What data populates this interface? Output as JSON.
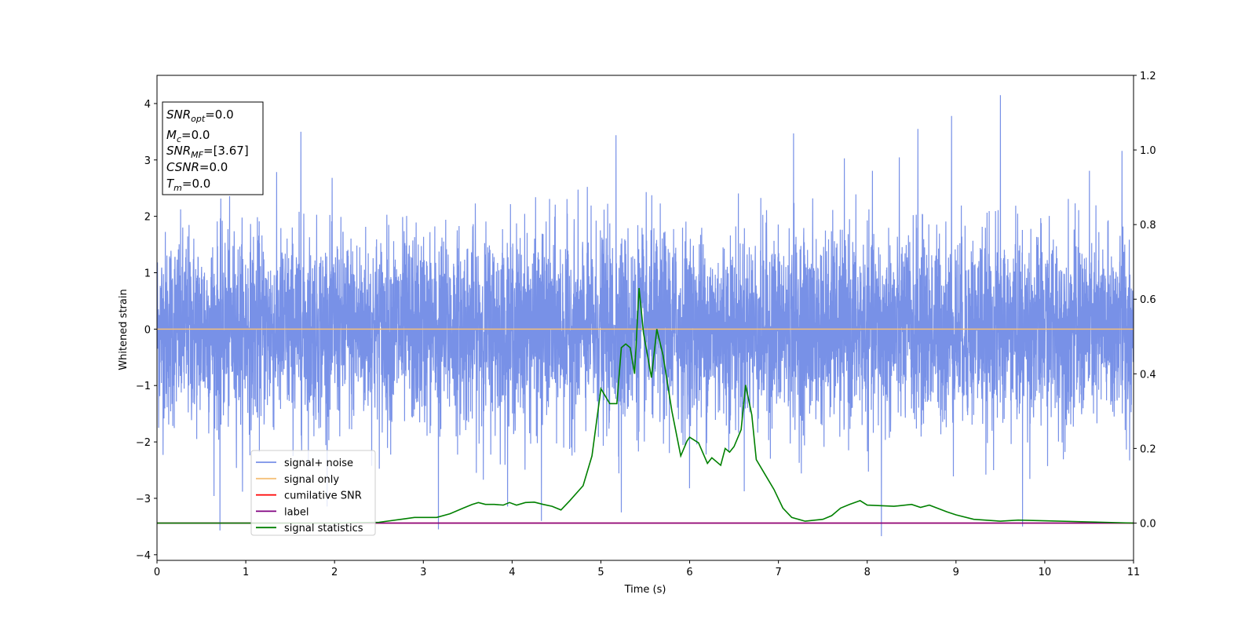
{
  "chart_data": {
    "type": "line",
    "xlabel": "Time (s)",
    "ylabel_left": "Whitened strain",
    "ylabel_right": "",
    "xlim": [
      0,
      11
    ],
    "ylim_left": [
      -4.1,
      4.5
    ],
    "ylim_right": [
      -0.1,
      1.2
    ],
    "x_ticks": [
      0,
      1,
      2,
      3,
      4,
      5,
      6,
      7,
      8,
      9,
      10,
      11
    ],
    "x_tick_labels": [
      "0",
      "1",
      "2",
      "3",
      "4",
      "5",
      "6",
      "7",
      "8",
      "9",
      "10",
      "11"
    ],
    "y_left_ticks": [
      -4,
      -3,
      -2,
      -1,
      0,
      1,
      2,
      3,
      4
    ],
    "y_left_tick_labels": [
      "−4",
      "−3",
      "−2",
      "−1",
      "0",
      "1",
      "2",
      "3",
      "4"
    ],
    "y_right_ticks": [
      0.0,
      0.2,
      0.4,
      0.6,
      0.8,
      1.0,
      1.2
    ],
    "y_right_tick_labels": [
      "0.0",
      "0.2",
      "0.4",
      "0.6",
      "0.8",
      "1.0",
      "1.2"
    ],
    "legend_placement": "lower-left",
    "grid": false,
    "series": [
      {
        "name": "signal+ noise",
        "axis": "left",
        "color": "#7891e7",
        "kind": "noise",
        "approx_amplitude_sigma": 0.85,
        "approx_range": [
          -3.7,
          4.2
        ],
        "notable_peaks": [
          [
            1.62,
            3.5
          ],
          [
            5.17,
            3.44
          ],
          [
            7.17,
            3.47
          ],
          [
            8.57,
            3.55
          ],
          [
            8.95,
            3.78
          ],
          [
            9.5,
            4.15
          ],
          [
            10.87,
            3.16
          ]
        ],
        "notable_troughs": [
          [
            0.71,
            -3.57
          ],
          [
            3.17,
            -3.55
          ],
          [
            4.33,
            -3.4
          ],
          [
            5.23,
            -3.25
          ],
          [
            8.16,
            -3.67
          ],
          [
            9.75,
            -3.5
          ]
        ]
      },
      {
        "name": "signal only",
        "axis": "left",
        "color": "#f5c07a",
        "x": [
          0,
          11
        ],
        "y": [
          0,
          0
        ]
      },
      {
        "name": "cumilative SNR",
        "axis": "right",
        "color": "#ff0000",
        "x": [
          0,
          11
        ],
        "y": [
          0,
          0
        ]
      },
      {
        "name": "label",
        "axis": "right",
        "color": "#800080",
        "x": [
          0,
          11
        ],
        "y": [
          0,
          0
        ]
      },
      {
        "name": "signal statistics",
        "axis": "right",
        "color": "#008000",
        "x": [
          0,
          0.5,
          1.0,
          1.5,
          2.0,
          2.5,
          2.75,
          2.9,
          3.0,
          3.15,
          3.3,
          3.45,
          3.55,
          3.62,
          3.7,
          3.8,
          3.9,
          3.97,
          4.05,
          4.15,
          4.25,
          4.35,
          4.45,
          4.55,
          4.65,
          4.8,
          4.9,
          5.0,
          5.1,
          5.18,
          5.23,
          5.28,
          5.33,
          5.38,
          5.43,
          5.48,
          5.57,
          5.63,
          5.7,
          5.8,
          5.9,
          5.97,
          6.0,
          6.1,
          6.2,
          6.25,
          6.35,
          6.4,
          6.45,
          6.5,
          6.58,
          6.63,
          6.7,
          6.75,
          6.85,
          6.95,
          7.05,
          7.15,
          7.3,
          7.5,
          7.6,
          7.7,
          7.8,
          7.92,
          8.0,
          8.3,
          8.5,
          8.6,
          8.7,
          8.9,
          9.0,
          9.2,
          9.5,
          9.7,
          10.0,
          10.5,
          11.0
        ],
        "y": [
          0.0,
          0.0,
          0.0,
          0.0,
          0.0,
          0.002,
          0.01,
          0.015,
          0.015,
          0.015,
          0.025,
          0.04,
          0.05,
          0.055,
          0.05,
          0.05,
          0.048,
          0.055,
          0.048,
          0.055,
          0.056,
          0.05,
          0.045,
          0.035,
          0.06,
          0.1,
          0.18,
          0.36,
          0.32,
          0.32,
          0.47,
          0.48,
          0.47,
          0.4,
          0.63,
          0.51,
          0.39,
          0.52,
          0.45,
          0.3,
          0.18,
          0.22,
          0.23,
          0.215,
          0.16,
          0.175,
          0.155,
          0.2,
          0.19,
          0.205,
          0.25,
          0.37,
          0.29,
          0.17,
          0.13,
          0.09,
          0.04,
          0.015,
          0.005,
          0.01,
          0.02,
          0.04,
          0.05,
          0.06,
          0.048,
          0.045,
          0.05,
          0.042,
          0.048,
          0.03,
          0.022,
          0.01,
          0.005,
          0.008,
          0.006,
          0.003,
          0.0
        ]
      }
    ]
  },
  "info_box": {
    "snr_opt_label": "SNR",
    "snr_opt_sub": "opt",
    "snr_opt_value": "=0.0",
    "mc_label": "M",
    "mc_sub": "c",
    "mc_value": "=0.0",
    "snr_mf_label": "SNR",
    "snr_mf_sub": "MF",
    "snr_mf_value": "=[3.67]",
    "csnr_label": "CSNR",
    "csnr_value": "=0.0",
    "tm_label": "T",
    "tm_sub": "m",
    "tm_value": "=0.0"
  }
}
